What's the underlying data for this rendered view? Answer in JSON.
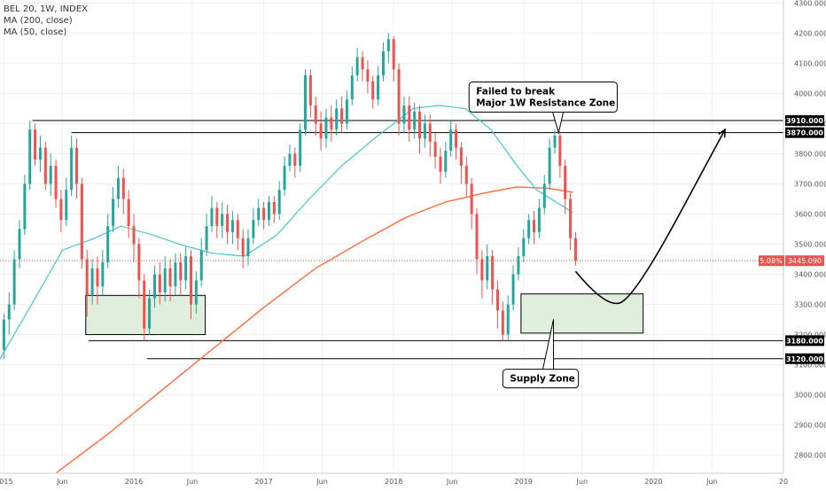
{
  "legend": {
    "symbol": "BEL 20, 1W, INDEX",
    "ma200": "MA (200, close)",
    "ma50": "MA (50, close)"
  },
  "colors": {
    "bull": "#26a69a",
    "bear": "#ef5350",
    "ma50": "#4dc3c8",
    "ma200": "#ff6a3d",
    "zone_fill": "#dfeedd",
    "price_line": "#ef5350"
  },
  "chart_data": {
    "type": "candlestick",
    "y_ticks": [
      2800,
      2900,
      3000,
      3100,
      3200,
      3300,
      3400,
      3500,
      3600,
      3700,
      3800,
      3900,
      4000,
      4100,
      4200,
      4300
    ],
    "y_tick_labels": [
      "2800.000",
      "2900.000",
      "3000.000",
      "3100.000",
      "3200.000",
      "3300.000",
      "3400.000",
      "3500.000",
      "3600.000",
      "3700.000",
      "3800.000",
      "3900.000",
      "4000.000",
      "4100.000",
      "4200.000",
      "4300.000"
    ],
    "ylim": [
      2740,
      4310
    ],
    "x_ticks": [
      {
        "t": 2015.0,
        "label": "2015"
      },
      {
        "t": 2015.45,
        "label": "Jun"
      },
      {
        "t": 2016.0,
        "label": "2016"
      },
      {
        "t": 2016.45,
        "label": "Jun"
      },
      {
        "t": 2017.0,
        "label": "2017"
      },
      {
        "t": 2017.45,
        "label": "Jun"
      },
      {
        "t": 2018.0,
        "label": "2018"
      },
      {
        "t": 2018.45,
        "label": "Jun"
      },
      {
        "t": 2019.0,
        "label": "2019"
      },
      {
        "t": 2019.45,
        "label": "Jun"
      },
      {
        "t": 2020.0,
        "label": "2020"
      },
      {
        "t": 2020.45,
        "label": "Jun"
      },
      {
        "t": 2021.0,
        "label": "20"
      }
    ],
    "xlim": [
      2014.97,
      2021.0
    ],
    "last_price": {
      "value": 3445.09,
      "label": "3445.090",
      "change_label": "5.08%"
    },
    "levels": [
      {
        "value": 3910,
        "label": "3910.000",
        "t_start": 2015.22
      },
      {
        "value": 3870,
        "label": "3870.000",
        "t_start": 2015.52
      },
      {
        "value": 3180,
        "label": "3180.000",
        "t_start": 2015.65
      },
      {
        "value": 3120,
        "label": "3120.000",
        "t_start": 2016.1
      }
    ],
    "zones": [
      {
        "t0": 2015.63,
        "t1": 2016.55,
        "y0": 3200,
        "y1": 3330
      },
      {
        "t0": 2018.98,
        "t1": 2019.92,
        "y0": 3205,
        "y1": 3335
      }
    ],
    "annotations": [
      {
        "text_lines": [
          "Failed to break",
          "Major 1W Resistance Zone"
        ],
        "t": 2018.58,
        "y": 4038,
        "target_t": 2019.27,
        "target_y": 3870
      },
      {
        "text_lines": [
          "Supply Zone"
        ],
        "t": 2018.84,
        "y": 3085,
        "target_t": 2019.23,
        "target_y": 3250
      }
    ],
    "projection": {
      "points": [
        [
          2019.4,
          3410
        ],
        [
          2019.63,
          3290
        ],
        [
          2019.85,
          3320
        ],
        [
          2020.2,
          3600
        ],
        [
          2020.55,
          3880
        ]
      ]
    },
    "ma200": [
      [
        2015.4,
        2740
      ],
      [
        2015.8,
        2870
      ],
      [
        2016.2,
        3010
      ],
      [
        2016.6,
        3150
      ],
      [
        2017.0,
        3290
      ],
      [
        2017.4,
        3420
      ],
      [
        2017.8,
        3520
      ],
      [
        2018.1,
        3590
      ],
      [
        2018.4,
        3640
      ],
      [
        2018.7,
        3670
      ],
      [
        2018.95,
        3690
      ],
      [
        2019.2,
        3685
      ],
      [
        2019.38,
        3672
      ]
    ],
    "ma50": [
      [
        2014.97,
        3120
      ],
      [
        2015.2,
        3290
      ],
      [
        2015.45,
        3480
      ],
      [
        2015.7,
        3520
      ],
      [
        2015.9,
        3560
      ],
      [
        2016.15,
        3530
      ],
      [
        2016.35,
        3500
      ],
      [
        2016.6,
        3470
      ],
      [
        2016.85,
        3460
      ],
      [
        2017.1,
        3530
      ],
      [
        2017.35,
        3650
      ],
      [
        2017.6,
        3760
      ],
      [
        2017.85,
        3850
      ],
      [
        2018.0,
        3900
      ],
      [
        2018.15,
        3950
      ],
      [
        2018.35,
        3960
      ],
      [
        2018.55,
        3950
      ],
      [
        2018.75,
        3880
      ],
      [
        2018.95,
        3760
      ],
      [
        2019.1,
        3680
      ],
      [
        2019.25,
        3640
      ],
      [
        2019.38,
        3605
      ]
    ],
    "candles": [
      [
        2015.0,
        3150,
        3250,
        3120,
        3270
      ],
      [
        2015.04,
        3250,
        3300,
        3200,
        3340
      ],
      [
        2015.08,
        3300,
        3450,
        3280,
        3480
      ],
      [
        2015.12,
        3450,
        3550,
        3420,
        3580
      ],
      [
        2015.16,
        3550,
        3700,
        3530,
        3730
      ],
      [
        2015.2,
        3700,
        3880,
        3680,
        3910
      ],
      [
        2015.24,
        3880,
        3780,
        3760,
        3900
      ],
      [
        2015.28,
        3780,
        3820,
        3740,
        3860
      ],
      [
        2015.32,
        3820,
        3700,
        3680,
        3840
      ],
      [
        2015.36,
        3700,
        3760,
        3660,
        3800
      ],
      [
        2015.4,
        3760,
        3650,
        3620,
        3780
      ],
      [
        2015.44,
        3650,
        3580,
        3540,
        3680
      ],
      [
        2015.48,
        3580,
        3680,
        3560,
        3720
      ],
      [
        2015.52,
        3680,
        3820,
        3660,
        3860
      ],
      [
        2015.56,
        3820,
        3700,
        3650,
        3850
      ],
      [
        2015.6,
        3700,
        3450,
        3420,
        3720
      ],
      [
        2015.64,
        3450,
        3330,
        3260,
        3480
      ],
      [
        2015.68,
        3330,
        3420,
        3300,
        3450
      ],
      [
        2015.72,
        3420,
        3360,
        3300,
        3460
      ],
      [
        2015.76,
        3360,
        3440,
        3330,
        3480
      ],
      [
        2015.8,
        3440,
        3560,
        3420,
        3600
      ],
      [
        2015.84,
        3560,
        3650,
        3540,
        3690
      ],
      [
        2015.88,
        3650,
        3720,
        3620,
        3760
      ],
      [
        2015.92,
        3720,
        3650,
        3600,
        3750
      ],
      [
        2015.96,
        3650,
        3560,
        3520,
        3680
      ],
      [
        2016.0,
        3560,
        3500,
        3440,
        3600
      ],
      [
        2016.04,
        3500,
        3380,
        3320,
        3520
      ],
      [
        2016.08,
        3380,
        3220,
        3180,
        3400
      ],
      [
        2016.12,
        3220,
        3320,
        3200,
        3350
      ],
      [
        2016.16,
        3320,
        3400,
        3290,
        3430
      ],
      [
        2016.2,
        3400,
        3340,
        3300,
        3440
      ],
      [
        2016.24,
        3340,
        3420,
        3310,
        3460
      ],
      [
        2016.28,
        3420,
        3360,
        3310,
        3450
      ],
      [
        2016.32,
        3360,
        3440,
        3330,
        3470
      ],
      [
        2016.36,
        3440,
        3380,
        3330,
        3470
      ],
      [
        2016.4,
        3380,
        3460,
        3350,
        3490
      ],
      [
        2016.44,
        3460,
        3300,
        3250,
        3480
      ],
      [
        2016.48,
        3300,
        3380,
        3270,
        3410
      ],
      [
        2016.52,
        3380,
        3480,
        3360,
        3520
      ],
      [
        2016.56,
        3480,
        3560,
        3460,
        3600
      ],
      [
        2016.6,
        3560,
        3620,
        3540,
        3660
      ],
      [
        2016.64,
        3620,
        3560,
        3520,
        3640
      ],
      [
        2016.68,
        3560,
        3600,
        3520,
        3640
      ],
      [
        2016.72,
        3600,
        3540,
        3500,
        3630
      ],
      [
        2016.76,
        3540,
        3580,
        3500,
        3610
      ],
      [
        2016.8,
        3580,
        3520,
        3480,
        3600
      ],
      [
        2016.84,
        3520,
        3460,
        3420,
        3550
      ],
      [
        2016.88,
        3460,
        3520,
        3430,
        3550
      ],
      [
        2016.92,
        3520,
        3580,
        3500,
        3620
      ],
      [
        2016.96,
        3580,
        3620,
        3560,
        3650
      ],
      [
        2017.0,
        3620,
        3580,
        3550,
        3640
      ],
      [
        2017.04,
        3580,
        3640,
        3560,
        3660
      ],
      [
        2017.08,
        3640,
        3600,
        3570,
        3660
      ],
      [
        2017.12,
        3600,
        3680,
        3580,
        3710
      ],
      [
        2017.16,
        3680,
        3760,
        3660,
        3790
      ],
      [
        2017.2,
        3760,
        3800,
        3740,
        3830
      ],
      [
        2017.24,
        3800,
        3760,
        3720,
        3820
      ],
      [
        2017.28,
        3760,
        3880,
        3740,
        3900
      ],
      [
        2017.32,
        3880,
        4060,
        3860,
        4080
      ],
      [
        2017.36,
        4060,
        3960,
        3920,
        4080
      ],
      [
        2017.4,
        3960,
        3900,
        3860,
        3990
      ],
      [
        2017.44,
        3900,
        3850,
        3810,
        3940
      ],
      [
        2017.48,
        3850,
        3920,
        3820,
        3950
      ],
      [
        2017.52,
        3920,
        3880,
        3840,
        3960
      ],
      [
        2017.56,
        3880,
        3950,
        3860,
        3980
      ],
      [
        2017.6,
        3950,
        3900,
        3870,
        3990
      ],
      [
        2017.64,
        3900,
        3980,
        3880,
        4010
      ],
      [
        2017.68,
        3980,
        4060,
        3960,
        4090
      ],
      [
        2017.72,
        4060,
        4120,
        4040,
        4150
      ],
      [
        2017.76,
        4120,
        4080,
        4040,
        4140
      ],
      [
        2017.8,
        4080,
        4040,
        4000,
        4110
      ],
      [
        2017.84,
        4040,
        3980,
        3950,
        4060
      ],
      [
        2017.88,
        3980,
        4060,
        3960,
        4090
      ],
      [
        2017.92,
        4060,
        4140,
        4040,
        4170
      ],
      [
        2017.96,
        4140,
        4180,
        4100,
        4200
      ],
      [
        2018.0,
        4180,
        4080,
        4040,
        4190
      ],
      [
        2018.04,
        4080,
        3900,
        3860,
        4100
      ],
      [
        2018.08,
        3900,
        3960,
        3870,
        3990
      ],
      [
        2018.12,
        3960,
        3880,
        3840,
        3990
      ],
      [
        2018.16,
        3880,
        3940,
        3850,
        3970
      ],
      [
        2018.2,
        3940,
        3850,
        3800,
        3960
      ],
      [
        2018.24,
        3850,
        3900,
        3820,
        3930
      ],
      [
        2018.28,
        3900,
        3840,
        3790,
        3930
      ],
      [
        2018.32,
        3840,
        3790,
        3750,
        3870
      ],
      [
        2018.36,
        3790,
        3740,
        3700,
        3820
      ],
      [
        2018.4,
        3740,
        3810,
        3720,
        3840
      ],
      [
        2018.44,
        3810,
        3880,
        3790,
        3910
      ],
      [
        2018.48,
        3880,
        3820,
        3780,
        3900
      ],
      [
        2018.52,
        3820,
        3760,
        3700,
        3840
      ],
      [
        2018.56,
        3760,
        3700,
        3660,
        3790
      ],
      [
        2018.6,
        3700,
        3600,
        3550,
        3720
      ],
      [
        2018.64,
        3600,
        3450,
        3400,
        3620
      ],
      [
        2018.68,
        3450,
        3380,
        3320,
        3480
      ],
      [
        2018.72,
        3380,
        3460,
        3350,
        3500
      ],
      [
        2018.76,
        3460,
        3350,
        3300,
        3480
      ],
      [
        2018.8,
        3350,
        3280,
        3220,
        3380
      ],
      [
        2018.84,
        3280,
        3200,
        3180,
        3310
      ],
      [
        2018.88,
        3200,
        3300,
        3180,
        3330
      ],
      [
        2018.92,
        3300,
        3400,
        3280,
        3430
      ],
      [
        2018.96,
        3400,
        3460,
        3380,
        3490
      ],
      [
        2019.0,
        3460,
        3520,
        3440,
        3550
      ],
      [
        2019.04,
        3520,
        3580,
        3500,
        3600
      ],
      [
        2019.08,
        3580,
        3540,
        3500,
        3610
      ],
      [
        2019.12,
        3540,
        3620,
        3520,
        3650
      ],
      [
        2019.16,
        3620,
        3700,
        3600,
        3730
      ],
      [
        2019.2,
        3700,
        3820,
        3680,
        3850
      ],
      [
        2019.24,
        3820,
        3860,
        3800,
        3880
      ],
      [
        2019.28,
        3860,
        3760,
        3720,
        3870
      ],
      [
        2019.32,
        3760,
        3650,
        3600,
        3780
      ],
      [
        2019.36,
        3650,
        3520,
        3480,
        3670
      ],
      [
        2019.4,
        3520,
        3445,
        3430,
        3540
      ]
    ]
  }
}
